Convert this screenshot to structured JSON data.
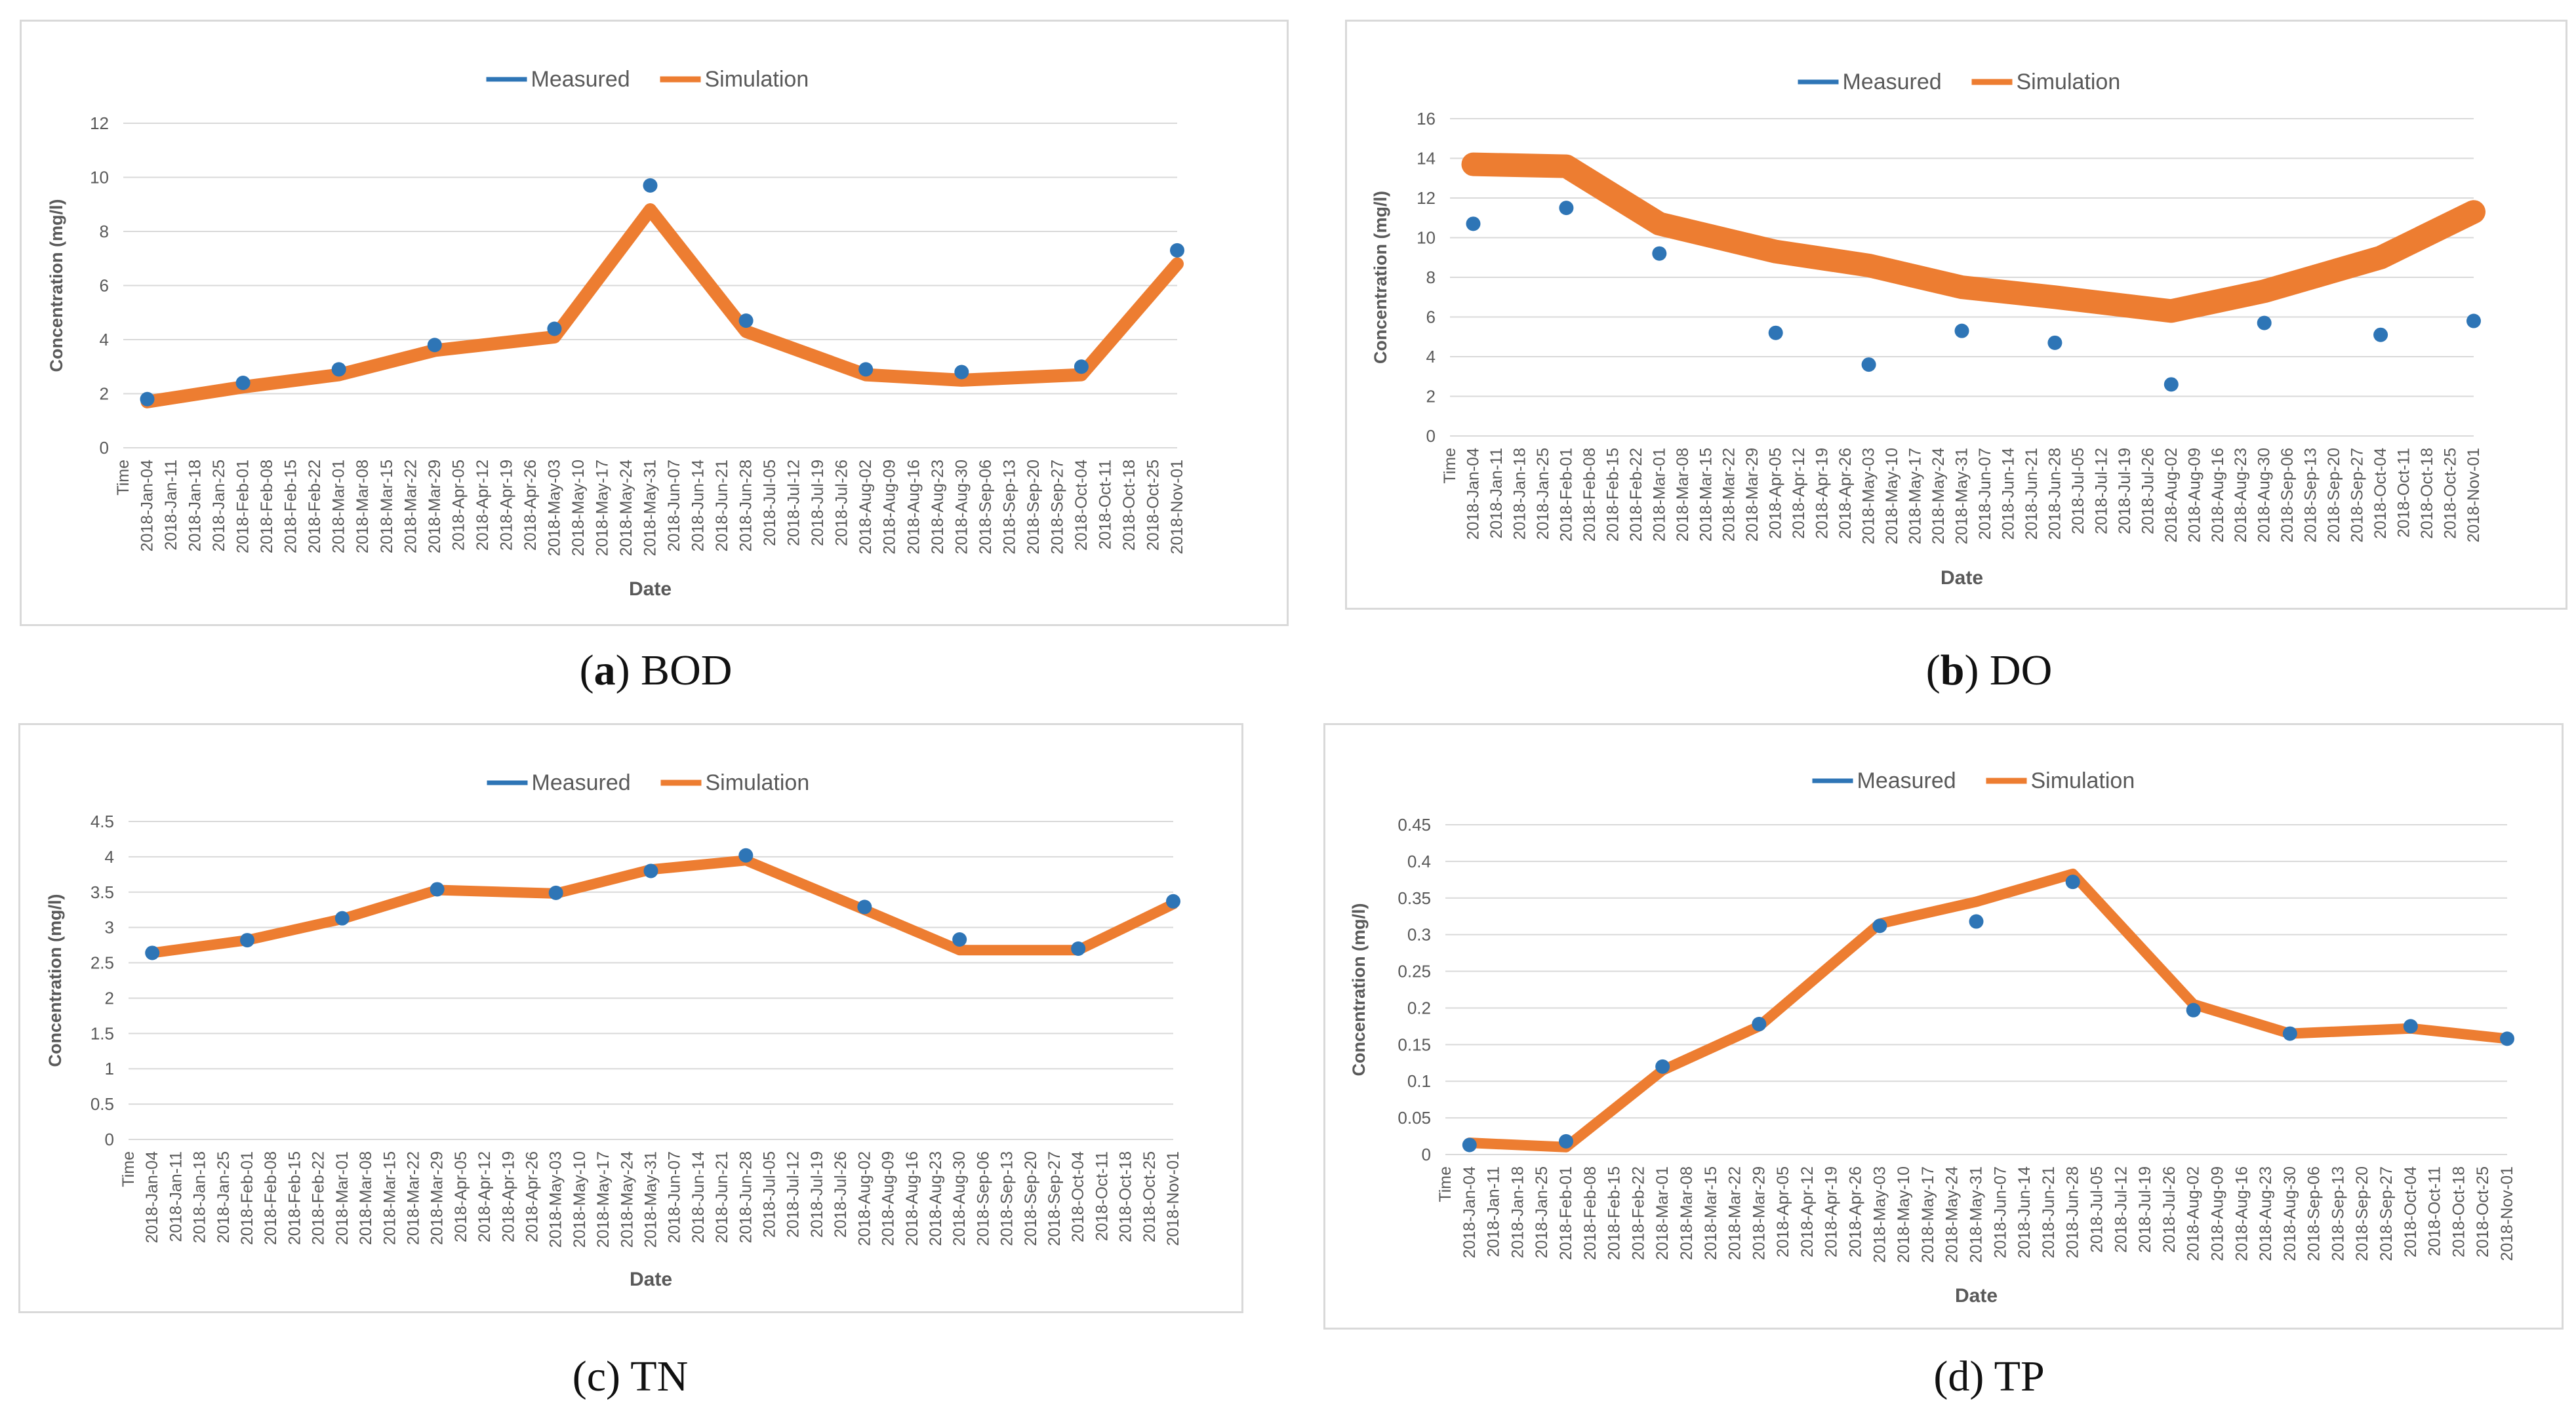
{
  "captions": [
    {
      "letter": "a",
      "bold": true,
      "name": "BOD"
    },
    {
      "letter": "b",
      "bold": true,
      "name": "DO"
    },
    {
      "letter": "c",
      "bold": false,
      "name": "TN"
    },
    {
      "letter": "d",
      "bold": false,
      "name": "TP"
    }
  ],
  "colors": {
    "measured": "#2e75b6",
    "simulation": "#ed7d31",
    "axis": "#d9d9d9",
    "text": "#595959"
  },
  "x_ticks": [
    "Time",
    "2018-Jan-04",
    "2018-Jan-11",
    "2018-Jan-18",
    "2018-Jan-25",
    "2018-Feb-01",
    "2018-Feb-08",
    "2018-Feb-15",
    "2018-Feb-22",
    "2018-Mar-01",
    "2018-Mar-08",
    "2018-Mar-15",
    "2018-Mar-22",
    "2018-Mar-29",
    "2018-Apr-05",
    "2018-Apr-12",
    "2018-Apr-19",
    "2018-Apr-26",
    "2018-May-03",
    "2018-May-10",
    "2018-May-17",
    "2018-May-24",
    "2018-May-31",
    "2018-Jun-07",
    "2018-Jun-14",
    "2018-Jun-21",
    "2018-Jun-28",
    "2018-Jul-05",
    "2018-Jul-12",
    "2018-Jul-19",
    "2018-Jul-26",
    "2018-Aug-02",
    "2018-Aug-09",
    "2018-Aug-16",
    "2018-Aug-23",
    "2018-Aug-30",
    "2018-Sep-06",
    "2018-Sep-13",
    "2018-Sep-20",
    "2018-Sep-27",
    "2018-Oct-04",
    "2018-Oct-11",
    "2018-Oct-18",
    "2018-Oct-25",
    "2018-Nov-01"
  ],
  "chart_data": [
    {
      "type": "line",
      "id": "BOD",
      "title": "",
      "xlabel": "Date",
      "ylabel": "Concentration (mg/l)",
      "ylim": [
        0,
        12
      ],
      "yticks": [
        "0",
        "2",
        "4",
        "6",
        "8",
        "10",
        "12"
      ],
      "legend": "top-center",
      "grid": true,
      "series": [
        {
          "name": "Measured",
          "kind": "scatter",
          "x": [
            "2018-Jan-04",
            "2018-Feb-01",
            "2018-Mar-01",
            "2018-Mar-29",
            "2018-May-03",
            "2018-May-31",
            "2018-Jun-28",
            "2018-Aug-02",
            "2018-Aug-30",
            "2018-Oct-04",
            "2018-Nov-01"
          ],
          "values": [
            1.8,
            2.4,
            2.9,
            3.8,
            4.4,
            9.7,
            4.7,
            2.9,
            2.8,
            3.0,
            7.3
          ]
        },
        {
          "name": "Simulation",
          "kind": "line",
          "x": [
            "2018-Jan-04",
            "2018-Feb-01",
            "2018-Mar-01",
            "2018-Mar-29",
            "2018-May-03",
            "2018-May-31",
            "2018-Jun-28",
            "2018-Aug-02",
            "2018-Aug-30",
            "2018-Oct-04",
            "2018-Nov-01"
          ],
          "values": [
            1.7,
            2.25,
            2.7,
            3.6,
            4.1,
            8.8,
            4.3,
            2.7,
            2.5,
            2.7,
            6.8
          ]
        }
      ]
    },
    {
      "type": "line",
      "id": "DO",
      "title": "",
      "xlabel": "Date",
      "ylabel": "Concentration (mg/l)",
      "ylim": [
        0,
        16
      ],
      "yticks": [
        "0",
        "2",
        "4",
        "6",
        "8",
        "10",
        "12",
        "14",
        "16"
      ],
      "legend": "top-center",
      "grid": true,
      "series": [
        {
          "name": "Measured",
          "kind": "scatter",
          "x": [
            "2018-Jan-04",
            "2018-Feb-01",
            "2018-Mar-01",
            "2018-Apr-05",
            "2018-May-03",
            "2018-May-31",
            "2018-Jun-28",
            "2018-Aug-02",
            "2018-Aug-30",
            "2018-Oct-04",
            "2018-Nov-01"
          ],
          "values": [
            10.7,
            11.5,
            9.2,
            5.2,
            3.6,
            5.3,
            4.7,
            2.6,
            5.7,
            5.1,
            5.8
          ]
        },
        {
          "name": "Simulation",
          "kind": "line",
          "x": [
            "2018-Jan-04",
            "2018-Feb-01",
            "2018-Mar-01",
            "2018-Apr-05",
            "2018-May-03",
            "2018-May-31",
            "2018-Jun-28",
            "2018-Aug-02",
            "2018-Aug-30",
            "2018-Oct-04",
            "2018-Nov-01"
          ],
          "values": [
            13.7,
            13.6,
            10.7,
            9.3,
            8.6,
            7.5,
            7.0,
            6.3,
            7.3,
            9.0,
            11.3
          ]
        }
      ]
    },
    {
      "type": "line",
      "id": "TN",
      "title": "",
      "xlabel": "Date",
      "ylabel": "Concentration (mg/l)",
      "ylim": [
        0,
        4.5
      ],
      "yticks": [
        "0",
        "0.5",
        "1",
        "1.5",
        "2",
        "2.5",
        "3",
        "3.5",
        "4",
        "4.5"
      ],
      "legend": "top-center",
      "grid": true,
      "series": [
        {
          "name": "Measured",
          "kind": "scatter",
          "x": [
            "2018-Jan-04",
            "2018-Feb-01",
            "2018-Mar-01",
            "2018-Mar-29",
            "2018-May-03",
            "2018-May-31",
            "2018-Jun-28",
            "2018-Aug-02",
            "2018-Aug-30",
            "2018-Oct-04",
            "2018-Nov-01"
          ],
          "values": [
            2.64,
            2.82,
            3.13,
            3.54,
            3.49,
            3.8,
            4.02,
            3.29,
            2.83,
            2.7,
            3.37
          ]
        },
        {
          "name": "Simulation",
          "kind": "line",
          "x": [
            "2018-Jan-04",
            "2018-Feb-01",
            "2018-Mar-01",
            "2018-Mar-29",
            "2018-May-03",
            "2018-May-31",
            "2018-Jun-28",
            "2018-Aug-02",
            "2018-Aug-30",
            "2018-Oct-04",
            "2018-Nov-01"
          ],
          "values": [
            2.64,
            2.82,
            3.12,
            3.53,
            3.48,
            3.82,
            3.95,
            3.25,
            2.68,
            2.68,
            3.33
          ]
        }
      ]
    },
    {
      "type": "line",
      "id": "TP",
      "title": "",
      "xlabel": "Date",
      "ylabel": "Concentration (mg/l)",
      "ylim": [
        0,
        0.45
      ],
      "yticks": [
        "0",
        "0.05",
        "0.1",
        "0.15",
        "0.2",
        "0.25",
        "0.3",
        "0.35",
        "0.4",
        "0.45"
      ],
      "legend": "top-center",
      "grid": true,
      "series": [
        {
          "name": "Measured",
          "kind": "scatter",
          "x": [
            "2018-Jan-04",
            "2018-Feb-01",
            "2018-Mar-01",
            "2018-Mar-29",
            "2018-May-03",
            "2018-May-31",
            "2018-Jun-28",
            "2018-Aug-02",
            "2018-Aug-30",
            "2018-Oct-04",
            "2018-Nov-01"
          ],
          "values": [
            0.013,
            0.018,
            0.12,
            0.178,
            0.312,
            0.318,
            0.372,
            0.197,
            0.165,
            0.175,
            0.158
          ]
        },
        {
          "name": "Simulation",
          "kind": "line",
          "x": [
            "2018-Jan-04",
            "2018-Feb-01",
            "2018-Mar-01",
            "2018-Mar-29",
            "2018-May-03",
            "2018-May-31",
            "2018-Jun-28",
            "2018-Aug-02",
            "2018-Aug-30",
            "2018-Oct-04",
            "2018-Nov-01"
          ],
          "values": [
            0.016,
            0.01,
            0.115,
            0.175,
            0.315,
            0.345,
            0.383,
            0.205,
            0.165,
            0.172,
            0.158
          ]
        }
      ]
    }
  ]
}
